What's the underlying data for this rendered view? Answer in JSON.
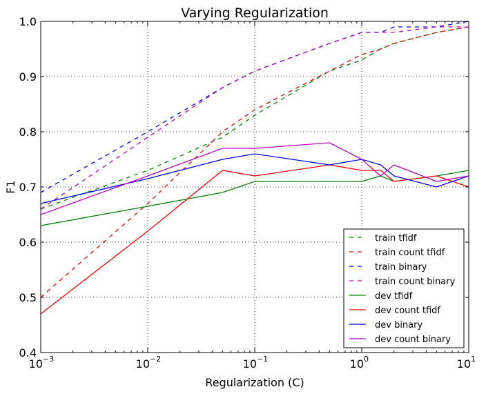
{
  "chart_data": {
    "type": "line",
    "title": "Varying Regularization",
    "xlabel": "Regularization (C)",
    "ylabel": "F1",
    "xscale": "log",
    "xlim": [
      0.001,
      10
    ],
    "ylim": [
      0.4,
      1.0
    ],
    "grid": true,
    "legend_position": "bottom-right",
    "x_ticks": [
      {
        "base": "10",
        "exp": "−3",
        "value": 0.001
      },
      {
        "base": "10",
        "exp": "−2",
        "value": 0.01
      },
      {
        "base": "10",
        "exp": "−1",
        "value": 0.1
      },
      {
        "base": "10",
        "exp": "0",
        "value": 1
      },
      {
        "base": "10",
        "exp": "1",
        "value": 10
      }
    ],
    "y_ticks": [
      "0.4",
      "0.5",
      "0.6",
      "0.7",
      "0.8",
      "0.9",
      "1.0"
    ],
    "series": [
      {
        "name": "train tfidf",
        "color": "#008000",
        "dashed": true,
        "x": [
          0.001,
          0.01,
          0.05,
          0.1,
          0.5,
          1,
          1.5,
          2,
          5,
          10
        ],
        "y": [
          0.66,
          0.73,
          0.79,
          0.83,
          0.91,
          0.93,
          0.95,
          0.96,
          0.98,
          0.99
        ]
      },
      {
        "name": "train count tfidf",
        "color": "#ff0000",
        "dashed": true,
        "x": [
          0.001,
          0.01,
          0.05,
          0.1,
          0.5,
          1,
          1.5,
          2,
          5,
          10
        ],
        "y": [
          0.5,
          0.67,
          0.8,
          0.84,
          0.91,
          0.94,
          0.95,
          0.96,
          0.98,
          0.99
        ]
      },
      {
        "name": "train binary",
        "color": "#0000ff",
        "dashed": true,
        "x": [
          0.001,
          0.01,
          0.05,
          0.1,
          0.5,
          1,
          1.5,
          2,
          5,
          10
        ],
        "y": [
          0.69,
          0.8,
          0.88,
          0.91,
          0.96,
          0.98,
          0.98,
          0.99,
          0.99,
          1.0
        ]
      },
      {
        "name": "train count binary",
        "color": "#bf00bf",
        "dashed": true,
        "x": [
          0.001,
          0.01,
          0.05,
          0.1,
          0.5,
          1,
          1.5,
          2,
          5,
          10
        ],
        "y": [
          0.66,
          0.79,
          0.88,
          0.91,
          0.96,
          0.98,
          0.98,
          0.98,
          0.99,
          0.99
        ]
      },
      {
        "name": "dev tfidf",
        "color": "#008000",
        "dashed": false,
        "x": [
          0.001,
          0.01,
          0.05,
          0.1,
          0.5,
          1,
          1.5,
          2,
          5,
          10
        ],
        "y": [
          0.63,
          0.665,
          0.69,
          0.71,
          0.71,
          0.71,
          0.72,
          0.71,
          0.72,
          0.73
        ]
      },
      {
        "name": "dev count tfidf",
        "color": "#ff0000",
        "dashed": false,
        "x": [
          0.001,
          0.01,
          0.05,
          0.1,
          0.5,
          1,
          1.5,
          2,
          5,
          10
        ],
        "y": [
          0.47,
          0.62,
          0.73,
          0.72,
          0.74,
          0.73,
          0.73,
          0.71,
          0.72,
          0.7
        ]
      },
      {
        "name": "dev binary",
        "color": "#0000ff",
        "dashed": false,
        "x": [
          0.001,
          0.01,
          0.05,
          0.1,
          0.5,
          1,
          1.5,
          2,
          5,
          10
        ],
        "y": [
          0.67,
          0.715,
          0.75,
          0.76,
          0.74,
          0.75,
          0.74,
          0.72,
          0.7,
          0.72
        ]
      },
      {
        "name": "dev count binary",
        "color": "#bf00bf",
        "dashed": false,
        "x": [
          0.001,
          0.01,
          0.05,
          0.1,
          0.5,
          1,
          1.5,
          2,
          5,
          10
        ],
        "y": [
          0.65,
          0.72,
          0.77,
          0.77,
          0.78,
          0.75,
          0.72,
          0.74,
          0.71,
          0.72
        ]
      }
    ]
  }
}
